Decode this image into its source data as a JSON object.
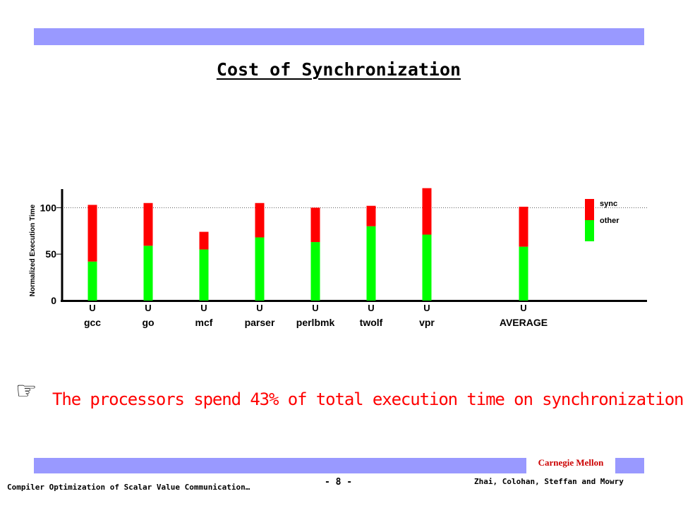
{
  "slide": {
    "title": "Cost of Synchronization",
    "bullet_icon": "pointing-hand-icon",
    "bullet_glyph": "☞",
    "statement": "The processors spend 43% of total execution time on synchronization",
    "footer_left": "Compiler Optimization of Scalar Value Communication…",
    "page_number": "- 8 -",
    "footer_right": "Zhai, Colohan, Steffan and Mowry",
    "institution": "Carnegie Mellon"
  },
  "chart_data": {
    "type": "bar",
    "stacked": true,
    "title": "",
    "xlabel": "",
    "ylabel": "Normalized Execution Time",
    "ylim": [
      0,
      120
    ],
    "yticks": [
      0,
      50,
      100
    ],
    "reference_line": 100,
    "categories": [
      "gcc",
      "go",
      "mcf",
      "parser",
      "perlbmk",
      "twolf",
      "vpr",
      "AVERAGE"
    ],
    "category_markers": [
      "U",
      "U",
      "U",
      "U",
      "U",
      "U",
      "U",
      "U"
    ],
    "series": [
      {
        "name": "other",
        "color": "#00ff00",
        "values": [
          42,
          59,
          55,
          68,
          63,
          80,
          71,
          58
        ]
      },
      {
        "name": "sync",
        "color": "#ff0000",
        "values": [
          61,
          46,
          19,
          37,
          37,
          22,
          50,
          43
        ]
      }
    ],
    "legend_position": "top-right",
    "legend_order": [
      "sync",
      "other"
    ]
  }
}
